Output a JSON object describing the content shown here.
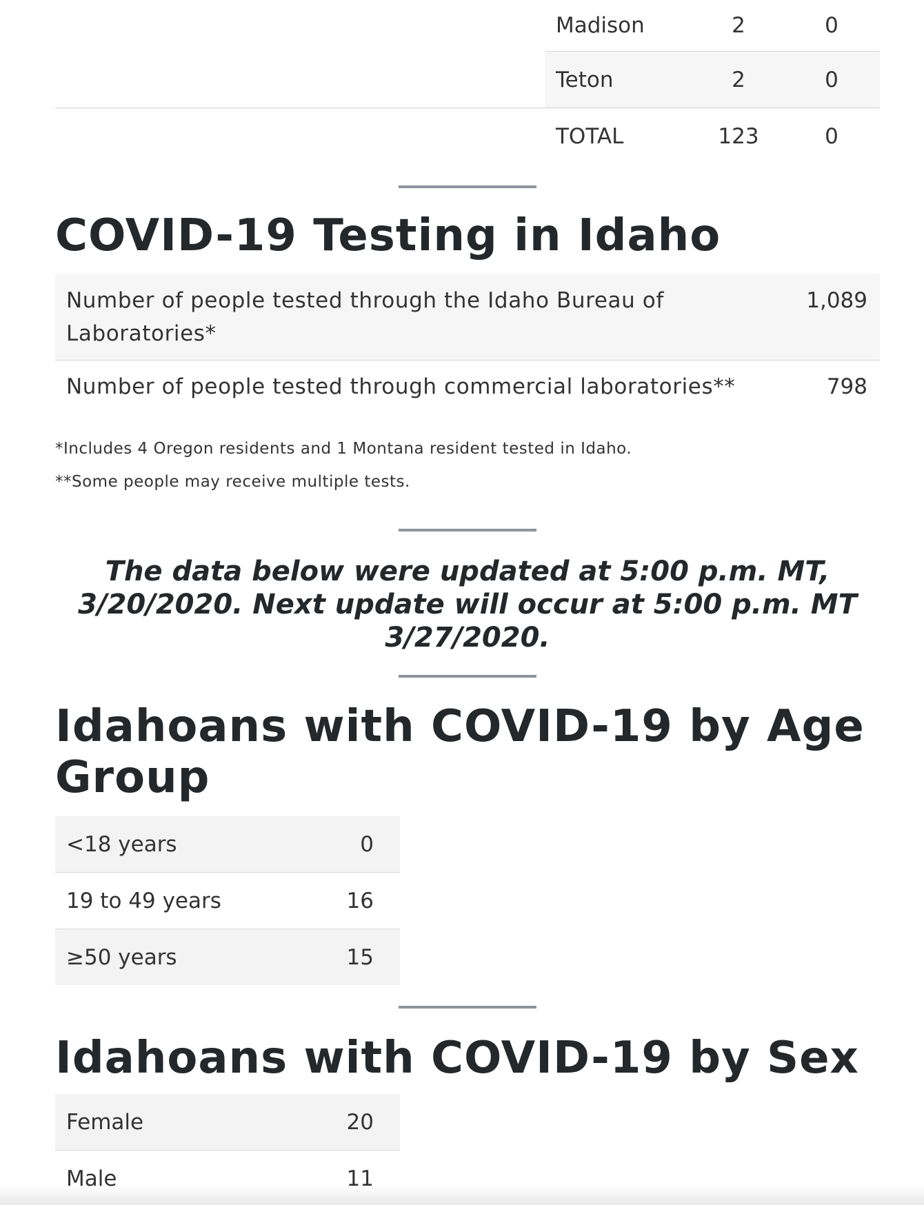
{
  "county_table": {
    "rows": [
      {
        "name": "Madison",
        "cases": "2",
        "deaths": "0"
      },
      {
        "name": "Teton",
        "cases": "2",
        "deaths": "0"
      },
      {
        "name": "TOTAL",
        "cases": "123",
        "deaths": "0"
      }
    ]
  },
  "testing": {
    "title": "COVID-19 Testing in Idaho",
    "rows": [
      {
        "label": "Number of people tested through the Idaho Bureau of Laboratories*",
        "value": "1,089"
      },
      {
        "label": "Number of people tested through commercial laboratories**",
        "value": "798"
      }
    ],
    "footnotes": [
      "*Includes 4 Oregon residents and 1 Montana resident tested in Idaho.",
      "**Some people may receive multiple tests."
    ]
  },
  "update_note": "The data below were updated at 5:00 p.m. MT, 3/20/2020. Next update will occur at 5:00 p.m. MT 3/27/2020.",
  "age_group": {
    "title": "Idahoans with COVID-19 by Age Group",
    "rows": [
      {
        "label": "<18 years",
        "value": "0"
      },
      {
        "label": "19 to 49 years",
        "value": "16"
      },
      {
        "label": "≥50 years",
        "value": "15"
      }
    ]
  },
  "sex": {
    "title": "Idahoans with COVID-19 by Sex",
    "rows": [
      {
        "label": "Female",
        "value": "20"
      },
      {
        "label": "Male",
        "value": "11"
      }
    ]
  }
}
